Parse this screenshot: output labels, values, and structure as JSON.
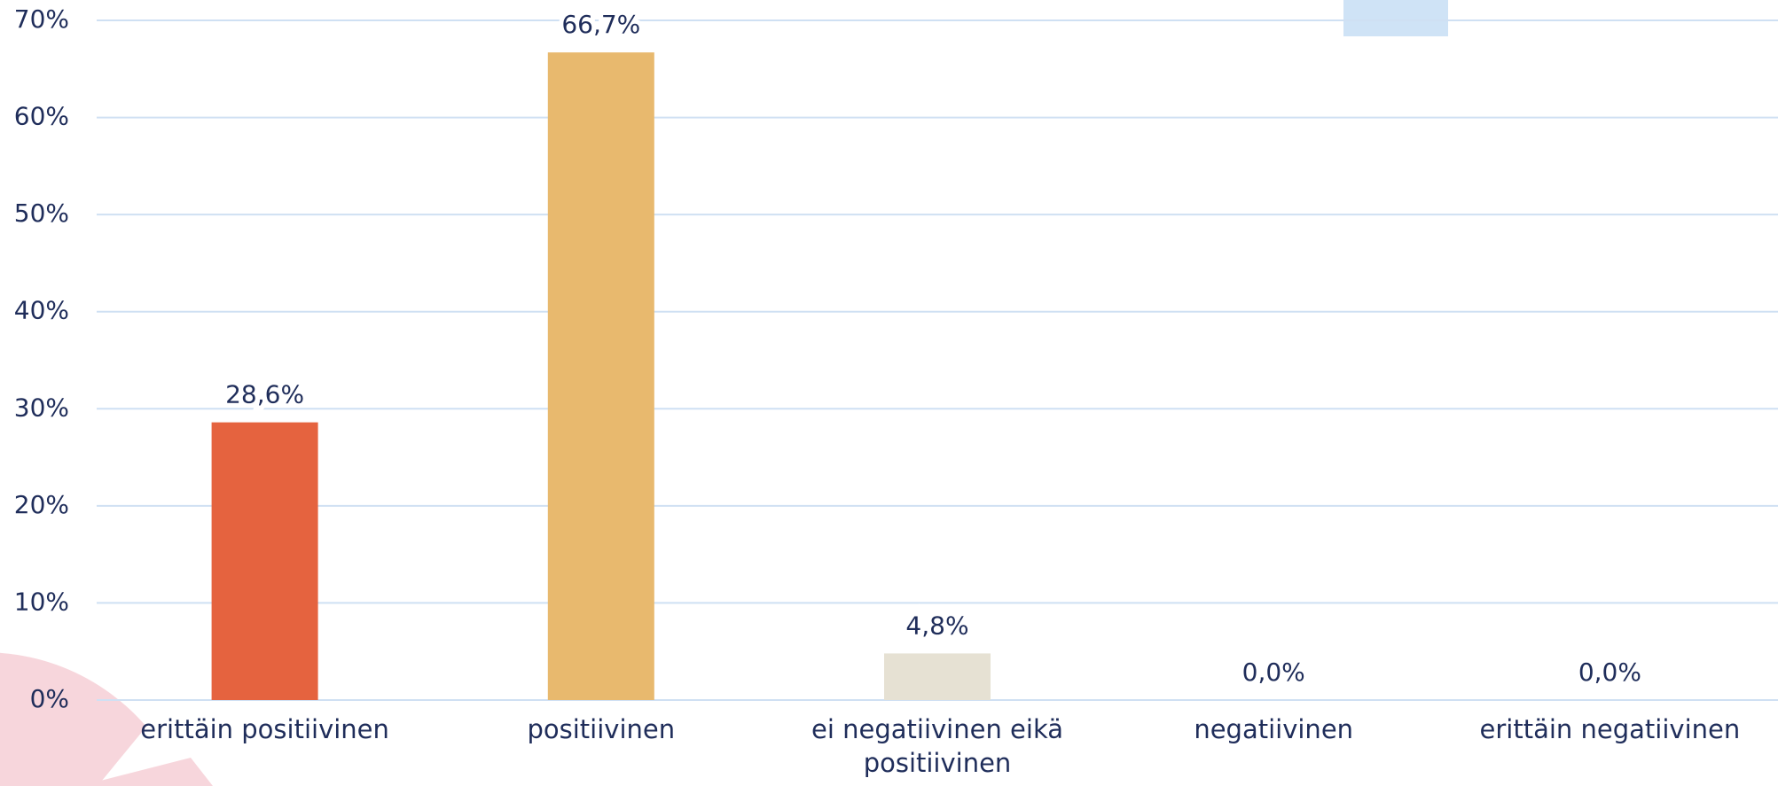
{
  "chart_data": {
    "type": "bar",
    "categories": [
      "erittäin positiivinen",
      "positiivinen",
      "ei negatiivinen eikä positiivinen",
      "negatiivinen",
      "erittäin negatiivinen"
    ],
    "values": [
      28.6,
      66.7,
      4.8,
      0,
      0
    ],
    "value_labels": [
      "28,6%",
      "66,7%",
      "4,8%",
      "0,0%",
      "0,0%"
    ],
    "colors": [
      "#e5633f",
      "#e8b96e",
      "#e6e1d3",
      "#9dc3e6",
      "#9dc3e6"
    ],
    "ylim": [
      0,
      70
    ],
    "yticks": [
      {
        "value": 0,
        "label": "0%"
      },
      {
        "value": 10,
        "label": "10%"
      },
      {
        "value": 20,
        "label": "20%"
      },
      {
        "value": 30,
        "label": "30%"
      },
      {
        "value": 40,
        "label": "40%"
      },
      {
        "value": 50,
        "label": "50%"
      },
      {
        "value": 60,
        "label": "60%"
      },
      {
        "value": 70,
        "label": "70%"
      }
    ],
    "grid": true
  }
}
